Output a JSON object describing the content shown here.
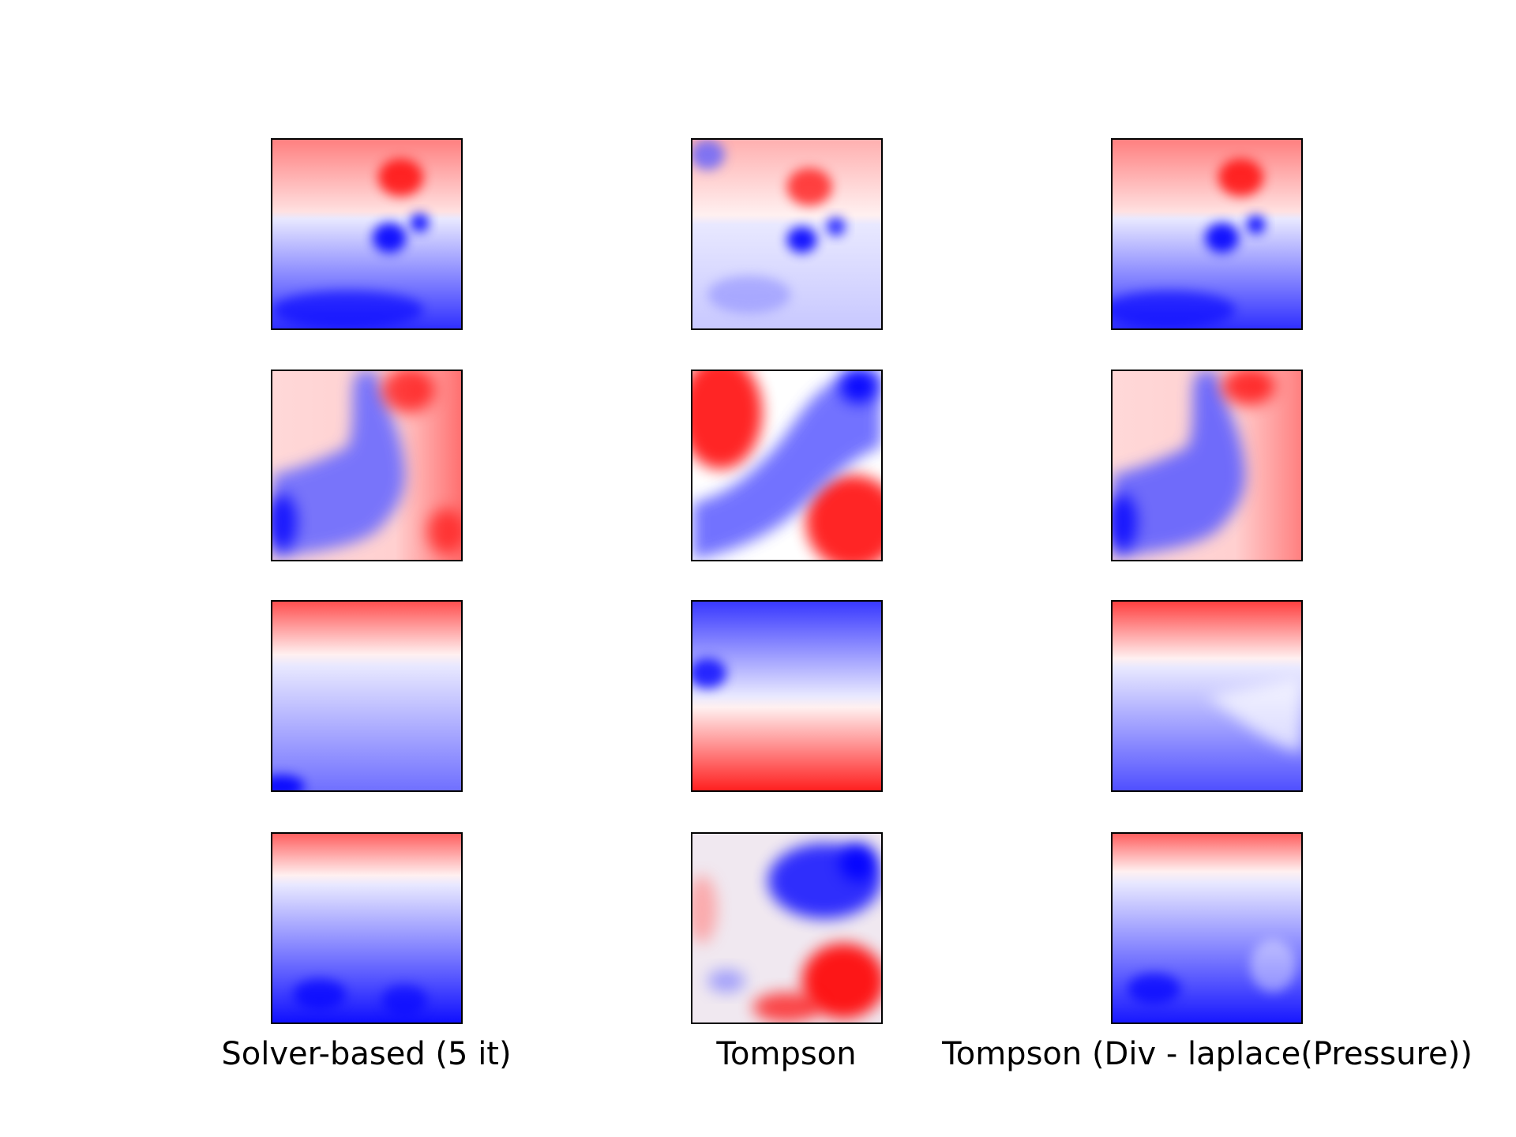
{
  "chart_data": {
    "type": "heatmap",
    "title": "",
    "columns": [
      "Solver-based (5 it)",
      "Tompson",
      "Tompson (Div - laplace(Pressure))"
    ],
    "rows": 4,
    "colormap": "bwr",
    "colormap_colors": {
      "low": "#0000ff",
      "mid": "#ffffff",
      "high": "#ff0000"
    },
    "axes_ticks": false,
    "panels": [
      {
        "row": 1,
        "column": "Solver-based (5 it)",
        "pattern": "red upper half, blue lower half with dark blue blobs near upper-right of blue region"
      },
      {
        "row": 1,
        "column": "Tompson",
        "pattern": "red upper half, pale blue lower half, dark blue blobs near center-right"
      },
      {
        "row": 1,
        "column": "Tompson (Div - laplace(Pressure))",
        "pattern": "red upper half, blue lower half with dark blue blobs near upper-right of blue region"
      },
      {
        "row": 2,
        "column": "Solver-based (5 it)",
        "pattern": "blue diagonal band from bottom-left to top-center, red right side and light red top-left"
      },
      {
        "row": 2,
        "column": "Tompson",
        "pattern": "red top-left and bottom-right, blue diagonal band from bottom-left to top-right"
      },
      {
        "row": 2,
        "column": "Tompson (Div - laplace(Pressure))",
        "pattern": "blue diagonal band from bottom-left to top-center, red right side and light red top-left"
      },
      {
        "row": 3,
        "column": "Solver-based (5 it)",
        "pattern": "red top strip, blue lower region darkening toward bottom-left"
      },
      {
        "row": 3,
        "column": "Tompson",
        "pattern": "blue upper half, red lower half"
      },
      {
        "row": 3,
        "column": "Tompson (Div - laplace(Pressure))",
        "pattern": "red top strip, blue lower region with light diagonal near right"
      },
      {
        "row": 4,
        "column": "Solver-based (5 it)",
        "pattern": "red thin top strip, blue below darkening toward bottom"
      },
      {
        "row": 4,
        "column": "Tompson",
        "pattern": "blue upper-right, red lower-right and left edge, light mixed center"
      },
      {
        "row": 4,
        "column": "Tompson (Div - laplace(Pressure))",
        "pattern": "red thin top strip, blue below darkening toward bottom-left"
      }
    ]
  }
}
